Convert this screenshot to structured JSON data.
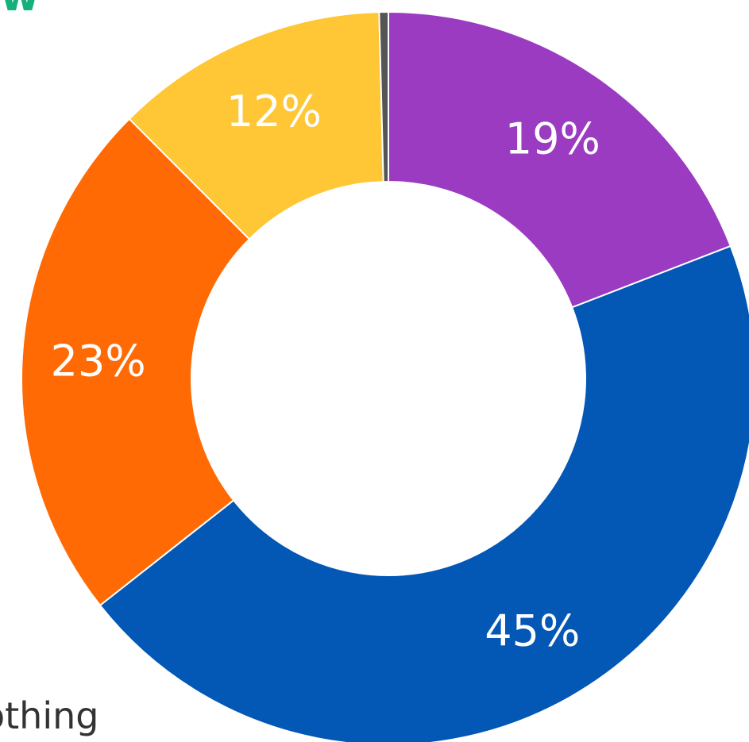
{
  "header_fragment": "w",
  "footer_fragment": "othing",
  "chart_data": {
    "type": "pie",
    "variant": "donut",
    "title": "",
    "legend": "none",
    "start_angle_deg": 0,
    "direction": "clockwise",
    "slices": [
      {
        "label": "19%",
        "value": 19,
        "color": "#9a3bc2"
      },
      {
        "label": "45%",
        "value": 45,
        "color": "#0357b5"
      },
      {
        "label": "23%",
        "value": 23,
        "color": "#ff6a05"
      },
      {
        "label": "12%",
        "value": 12,
        "color": "#ffc635"
      },
      {
        "label": "",
        "value": 0.4,
        "color": "#555555"
      }
    ]
  }
}
